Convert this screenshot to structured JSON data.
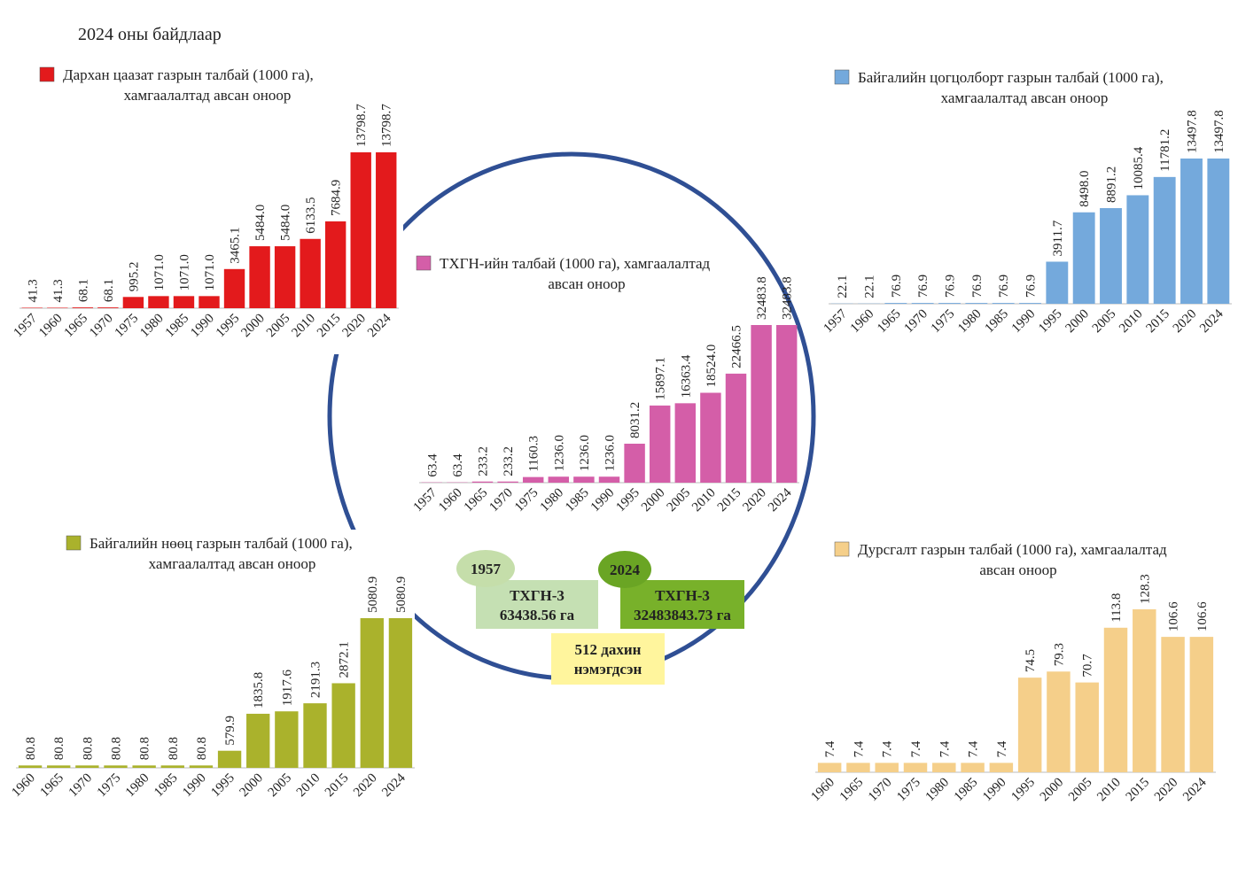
{
  "header": {
    "subtitle": "2024 оны байдлаар"
  },
  "callouts": {
    "start_year": "1957",
    "start_text": [
      "ТХГН-3",
      "63438.56 га"
    ],
    "end_year": "2024",
    "end_text": [
      "ТХГН-3",
      "32483843.73 га"
    ],
    "change": [
      "512 дахин",
      "нэмэгдсэн"
    ]
  },
  "chart_data": [
    {
      "type": "bar",
      "title": [
        "Дархан цаазат газрын талбай (1000 га),",
        "хамгаалалтад авсан оноор"
      ],
      "color": "#e31a1c",
      "categories": [
        "1957",
        "1960",
        "1965",
        "1970",
        "1975",
        "1980",
        "1985",
        "1990",
        "1995",
        "2000",
        "2005",
        "2010",
        "2015",
        "2020",
        "2024"
      ],
      "values": [
        41.3,
        41.3,
        68.1,
        68.1,
        995.2,
        1071.0,
        1071.0,
        1071.0,
        3465.1,
        5484.0,
        5484.0,
        6133.5,
        7684.9,
        13798.7,
        13798.7
      ],
      "value_labels": [
        "41.3",
        "41.3",
        "68.1",
        "68.1",
        "995.2",
        "1071.0",
        "1071.0",
        "1071.0",
        "3465.1",
        "5484.0",
        "5484.0",
        "6133.5",
        "7684.9",
        "13798.7",
        "13798.7"
      ]
    },
    {
      "type": "bar",
      "title": [
        "Байгалийн цогцолборт газрын талбай (1000 га),",
        "хамгаалалтад авсан оноор"
      ],
      "color": "#74a9dc",
      "categories": [
        "1957",
        "1960",
        "1965",
        "1970",
        "1975",
        "1980",
        "1985",
        "1990",
        "1995",
        "2000",
        "2005",
        "2010",
        "2015",
        "2020",
        "2024"
      ],
      "values": [
        22.1,
        22.1,
        76.9,
        76.9,
        76.9,
        76.9,
        76.9,
        76.9,
        3911.7,
        8498.0,
        8891.2,
        10085.4,
        11781.2,
        13497.8,
        13497.8
      ],
      "value_labels": [
        "22.1",
        "22.1",
        "76.9",
        "76.9",
        "76.9",
        "76.9",
        "76.9",
        "76.9",
        "3911.7",
        "8498.0",
        "8891.2",
        "10085.4",
        "11781.2",
        "13497.8",
        "13497.8"
      ]
    },
    {
      "type": "bar",
      "title": [
        "ТХГН-ийн талбай (1000 га), хамгаалалтад",
        "авсан оноор"
      ],
      "color": "#d45ea8",
      "categories": [
        "1957",
        "1960",
        "1965",
        "1970",
        "1975",
        "1980",
        "1985",
        "1990",
        "1995",
        "2000",
        "2005",
        "2010",
        "2015",
        "2020",
        "2024"
      ],
      "values": [
        63.4,
        63.4,
        233.2,
        233.2,
        1160.3,
        1236.0,
        1236.0,
        1236.0,
        8031.2,
        15897.1,
        16363.4,
        18524.0,
        22466.5,
        32483.8,
        32483.8
      ],
      "value_labels": [
        "63.4",
        "63.4",
        "233.2",
        "233.2",
        "1160.3",
        "1236.0",
        "1236.0",
        "1236.0",
        "8031.2",
        "15897.1",
        "16363.4",
        "18524.0",
        "22466.5",
        "32483.8",
        "32483.8"
      ]
    },
    {
      "type": "bar",
      "title": [
        "Байгалийн нөөц газрын талбай (1000 га),",
        "хамгаалалтад авсан оноор"
      ],
      "color": "#aab22c",
      "categories": [
        "1960",
        "1965",
        "1970",
        "1975",
        "1980",
        "1985",
        "1990",
        "1995",
        "2000",
        "2005",
        "2010",
        "2015",
        "2020",
        "2024"
      ],
      "values": [
        80.8,
        80.8,
        80.8,
        80.8,
        80.8,
        80.8,
        80.8,
        579.9,
        1835.8,
        1917.6,
        2191.3,
        2872.1,
        5080.9,
        5080.9
      ],
      "value_labels": [
        "80.8",
        "80.8",
        "80.8",
        "80.8",
        "80.8",
        "80.8",
        "80.8",
        "579.9",
        "1835.8",
        "1917.6",
        "2191.3",
        "2872.1",
        "5080.9",
        "5080.9"
      ]
    },
    {
      "type": "bar",
      "title": [
        "Дурсгалт газрын талбай (1000 га), хамгаалалтад",
        "авсан оноор"
      ],
      "color": "#f5cf8a",
      "categories": [
        "1960",
        "1965",
        "1970",
        "1975",
        "1980",
        "1985",
        "1990",
        "1995",
        "2000",
        "2005",
        "2010",
        "2015",
        "2020",
        "2024"
      ],
      "values": [
        7.4,
        7.4,
        7.4,
        7.4,
        7.4,
        7.4,
        7.4,
        74.5,
        79.3,
        70.7,
        113.8,
        128.3,
        106.6,
        106.6
      ],
      "value_labels": [
        "7.4",
        "7.4",
        "7.4",
        "7.4",
        "7.4",
        "7.4",
        "7.4",
        "74.5",
        "79.3",
        "70.7",
        "113.8",
        "128.3",
        "106.6",
        "106.6"
      ]
    }
  ]
}
